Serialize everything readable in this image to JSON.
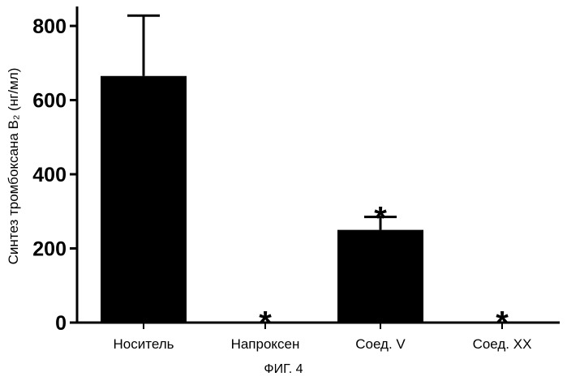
{
  "chart_data": {
    "type": "bar",
    "categories": [
      "Носитель",
      "Напроксен",
      "Соед. V",
      "Соед. XX"
    ],
    "values": [
      665,
      3,
      250,
      3
    ],
    "error_upper": [
      828,
      null,
      285,
      null
    ],
    "significance": [
      "",
      "*",
      "*",
      "*"
    ],
    "ylabel": "Синтез тромбоксана B₂ (нг/мл)",
    "xlabel": "",
    "ylim": [
      0,
      850
    ],
    "yticks": [
      0,
      200,
      400,
      600,
      800
    ],
    "grid": false,
    "bar_color": "#000000"
  },
  "caption": "ФИГ. 4"
}
